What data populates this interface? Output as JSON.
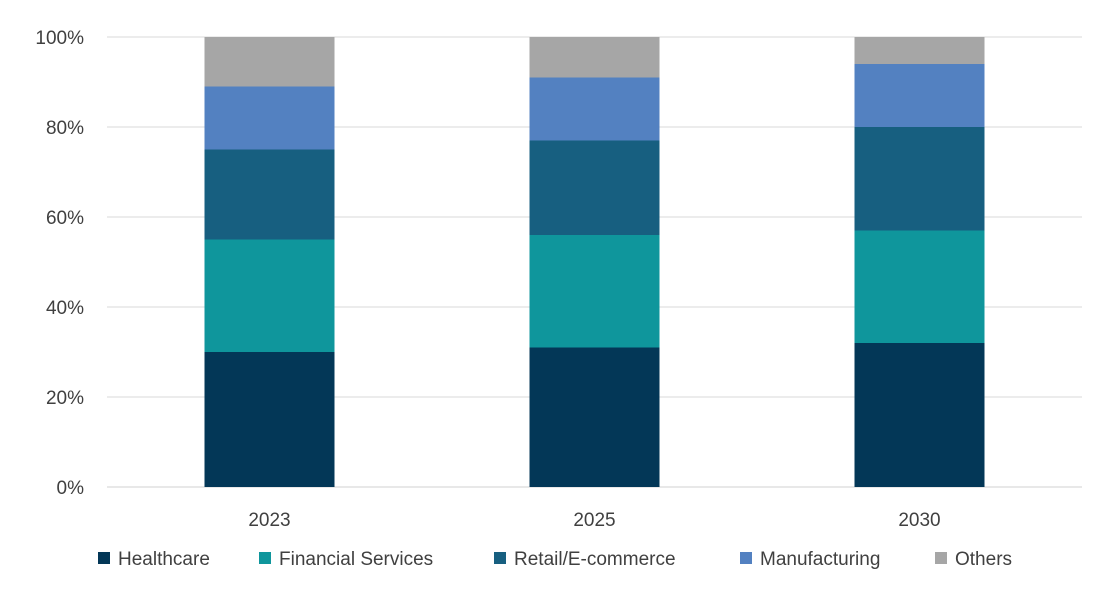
{
  "chart_data": {
    "type": "bar",
    "stacked": true,
    "percent": true,
    "categories": [
      "2023",
      "2025",
      "2030"
    ],
    "series": [
      {
        "name": "Healthcare",
        "color": "#033757",
        "values": [
          30,
          31,
          32
        ]
      },
      {
        "name": "Financial Services",
        "color": "#0F969C",
        "values": [
          25,
          25,
          25
        ]
      },
      {
        "name": "Retail/E-commerce",
        "color": "#175F80",
        "values": [
          20,
          21,
          23
        ]
      },
      {
        "name": "Manufacturing",
        "color": "#5381C1",
        "values": [
          14,
          14,
          14
        ]
      },
      {
        "name": "Others",
        "color": "#A6A6A6",
        "values": [
          11,
          9,
          6
        ]
      }
    ],
    "title": "",
    "xlabel": "",
    "ylabel": "",
    "ylim": [
      0,
      100
    ],
    "yticks": [
      "0%",
      "20%",
      "40%",
      "60%",
      "80%",
      "100%"
    ],
    "grid": true,
    "legend": "bottom"
  }
}
